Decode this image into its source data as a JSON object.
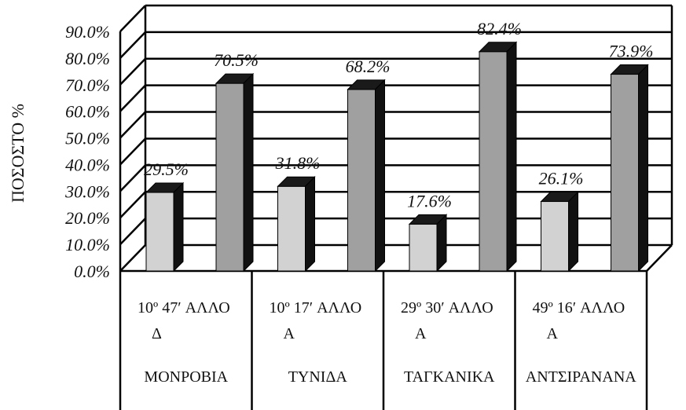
{
  "chart_data": {
    "type": "bar",
    "ylabel": "ΠΟΣΟΣΤΟ %",
    "ylim": [
      0,
      90
    ],
    "ytick_labels": [
      "0.0%",
      "10.0%",
      "20.0%",
      "30.0%",
      "40.0%",
      "50.0%",
      "60.0%",
      "70.0%",
      "80.0%",
      "90.0%"
    ],
    "categories": [
      {
        "line1": "10º 47′  ΑΛΛΟ",
        "line2": "Δ",
        "city": "ΜΟΝΡΟΒΙΑ"
      },
      {
        "line1": "10º 17′  ΑΛΛΟ",
        "line2": "Α",
        "city": "ΤΥΝΙΔΑ"
      },
      {
        "line1": "29º 30′  ΑΛΛΟ",
        "line2": "Α",
        "city": "ΤΑΓΚΑΝΙΚΑ"
      },
      {
        "line1": "49º 16′  ΑΛΛΟ",
        "line2": "Α",
        "city": "ΑΝΤΣΙΡΑΝΑΝΑ"
      }
    ],
    "series": [
      {
        "values": [
          29.5,
          31.8,
          17.6,
          26.1
        ],
        "labels": [
          "29.5%",
          "31.8%",
          "17.6%",
          "26.1%"
        ],
        "color": "#d2d2d2"
      },
      {
        "values": [
          70.5,
          68.2,
          82.4,
          73.9
        ],
        "labels": [
          "70.5%",
          "68.2%",
          "82.4%",
          "73.9%"
        ],
        "color": "#a0a0a0"
      }
    ],
    "grid": true
  }
}
